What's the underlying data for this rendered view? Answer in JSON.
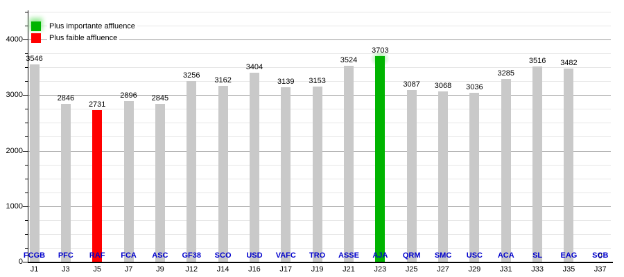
{
  "chart_data": {
    "type": "bar",
    "title": "",
    "xlabel": "",
    "ylabel": "",
    "ylim": [
      0,
      4500
    ],
    "y_major_ticks": [
      0,
      1000,
      2000,
      3000,
      4000
    ],
    "y_minor_step": 250,
    "grid": true,
    "legend_position": "top-left",
    "categories": [
      "FCGB",
      "PFC",
      "RAF",
      "FCA",
      "ASC",
      "GF38",
      "SCO",
      "USD",
      "VAFC",
      "TRO",
      "ASSE",
      "AJA",
      "QRM",
      "SMC",
      "USC",
      "ACA",
      "SL",
      "EAG",
      "SCB"
    ],
    "matchdays": [
      "J1",
      "J3",
      "J5",
      "J7",
      "J9",
      "J12",
      "J14",
      "J16",
      "J17",
      "J19",
      "J21",
      "J23",
      "J25",
      "J27",
      "J29",
      "J31",
      "J33",
      "J35",
      "J37"
    ],
    "values": [
      3546,
      2846,
      2731,
      2896,
      2845,
      3256,
      3162,
      3404,
      3139,
      3153,
      3524,
      3703,
      3087,
      3068,
      3036,
      3285,
      3516,
      3482,
      0
    ],
    "highlight": {
      "max_index": 11,
      "min_index": 2
    },
    "legend": [
      {
        "label": "Plus importante affluence",
        "color": "#00b400"
      },
      {
        "label": "Plus faible affluence",
        "color": "#ff0000"
      }
    ],
    "colors": {
      "bar_default": "#c9c9c9",
      "bar_max": "#00b400",
      "bar_min": "#ff0000",
      "glow": "#8ee88e",
      "grid_major": "#9c9c9c",
      "grid_minor": "#e6e6e6",
      "axis": "#000000",
      "value_label": "#000000",
      "team_label": "#0000cc",
      "day_label": "#000000"
    }
  }
}
